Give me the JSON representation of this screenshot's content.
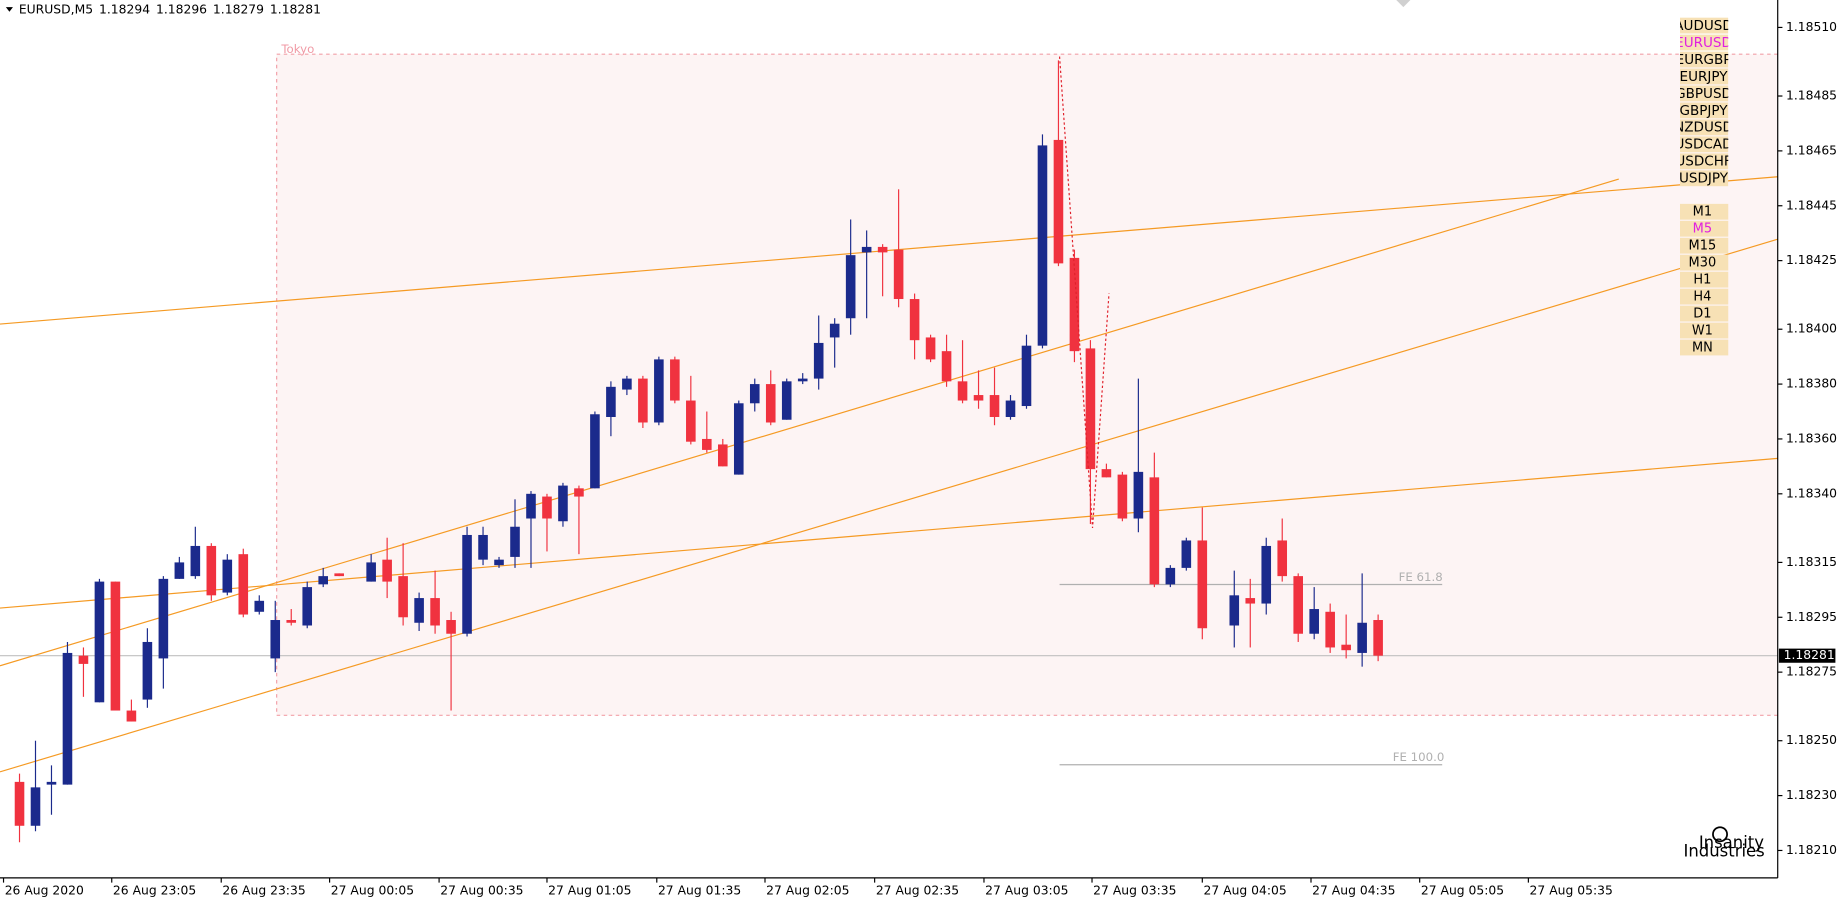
{
  "chart_data": {
    "type": "candlestick",
    "symbol": "EURUSD,M5",
    "up_color": "#1b2a8c",
    "down_color": "#f0323f",
    "x": [
      0,
      1,
      2,
      3,
      4,
      5,
      6,
      7,
      8,
      9,
      10,
      11,
      12,
      13,
      14,
      15,
      16,
      17,
      18,
      19,
      20,
      22,
      23,
      24,
      25,
      26,
      27,
      28,
      29,
      30,
      31,
      32,
      33,
      34,
      35,
      36,
      37,
      38,
      39,
      40,
      41,
      42,
      43,
      44,
      45,
      46,
      47,
      48,
      49,
      50,
      51,
      52,
      53,
      54,
      55,
      56,
      57,
      58,
      59,
      60,
      61,
      62,
      63,
      64,
      65,
      66,
      67,
      68,
      69,
      70,
      71,
      72,
      73,
      74,
      76,
      77,
      78,
      79,
      80,
      81,
      82,
      83,
      84,
      85
    ],
    "open": [
      1.18235,
      1.18219,
      1.18234,
      1.18234,
      1.18281,
      1.18264,
      1.18308,
      1.18261,
      1.18265,
      1.1828,
      1.18309,
      1.1831,
      1.18321,
      1.18304,
      1.18318,
      1.18297,
      1.1828,
      1.18294,
      1.18292,
      1.18307,
      1.18311,
      1.18308,
      1.18316,
      1.1831,
      1.18293,
      1.18302,
      1.18294,
      1.18289,
      1.18316,
      1.18314,
      1.18317,
      1.18331,
      1.18339,
      1.1833,
      1.18342,
      1.18342,
      1.18368,
      1.18378,
      1.18382,
      1.18366,
      1.18389,
      1.18374,
      1.1836,
      1.18358,
      1.18347,
      1.18373,
      1.1838,
      1.18367,
      1.18381,
      1.18382,
      1.18397,
      1.18404,
      1.18428,
      1.1843,
      1.18429,
      1.18411,
      1.18397,
      1.18392,
      1.18381,
      1.18376,
      1.18376,
      1.18368,
      1.18372,
      1.18394,
      1.18469,
      1.18426,
      1.18393,
      1.18349,
      1.18347,
      1.18331,
      1.18346,
      1.18307,
      1.18313,
      1.18323,
      1.18292,
      1.18302,
      1.183,
      1.18323,
      1.1831,
      1.18289,
      1.18297,
      1.18285,
      1.18282,
      1.18294
    ],
    "high": [
      1.18238,
      1.1825,
      1.18241,
      1.18286,
      1.18284,
      1.18309,
      1.18308,
      1.18265,
      1.18291,
      1.1831,
      1.18317,
      1.18328,
      1.18322,
      1.18318,
      1.1832,
      1.18303,
      1.18301,
      1.18298,
      1.18308,
      1.18313,
      1.18311,
      1.18318,
      1.18324,
      1.18322,
      1.18304,
      1.18312,
      1.18297,
      1.18328,
      1.18328,
      1.18317,
      1.18338,
      1.18341,
      1.1834,
      1.18344,
      1.18343,
      1.1837,
      1.18381,
      1.18383,
      1.18383,
      1.1839,
      1.1839,
      1.18383,
      1.1837,
      1.1836,
      1.18374,
      1.18382,
      1.18385,
      1.18382,
      1.18384,
      1.18405,
      1.18404,
      1.1844,
      1.18436,
      1.18431,
      1.18451,
      1.18413,
      1.18398,
      1.18398,
      1.18396,
      1.18385,
      1.18386,
      1.18376,
      1.18398,
      1.18471,
      1.18498,
      1.18429,
      1.18396,
      1.18351,
      1.18348,
      1.18382,
      1.18355,
      1.18314,
      1.18324,
      1.18335,
      1.18312,
      1.18309,
      1.18324,
      1.18331,
      1.18311,
      1.18306,
      1.183,
      1.18296,
      1.18311,
      1.18296
    ],
    "low": [
      1.18213,
      1.18217,
      1.18223,
      1.18234,
      1.18266,
      1.18264,
      1.18261,
      1.18257,
      1.18262,
      1.18269,
      1.18309,
      1.18309,
      1.18301,
      1.18303,
      1.18295,
      1.18296,
      1.18275,
      1.18292,
      1.18291,
      1.18306,
      1.1831,
      1.18308,
      1.18302,
      1.18292,
      1.1829,
      1.18289,
      1.18261,
      1.18288,
      1.18314,
      1.18313,
      1.18313,
      1.18313,
      1.18319,
      1.18328,
      1.18318,
      1.18342,
      1.18361,
      1.18376,
      1.18364,
      1.18365,
      1.18373,
      1.18358,
      1.18355,
      1.1835,
      1.18347,
      1.1837,
      1.18365,
      1.18367,
      1.1838,
      1.18378,
      1.18386,
      1.18398,
      1.18404,
      1.18412,
      1.18408,
      1.18389,
      1.18388,
      1.18379,
      1.18373,
      1.18371,
      1.18365,
      1.18367,
      1.18371,
      1.18393,
      1.18423,
      1.18388,
      1.18329,
      1.18346,
      1.1833,
      1.18326,
      1.18306,
      1.18306,
      1.18312,
      1.18287,
      1.18284,
      1.18284,
      1.18296,
      1.18308,
      1.18286,
      1.18287,
      1.18282,
      1.1828,
      1.18277,
      1.18279
    ],
    "close": [
      1.18219,
      1.18233,
      1.18235,
      1.18282,
      1.18278,
      1.18308,
      1.18261,
      1.18257,
      1.18286,
      1.18309,
      1.18315,
      1.18321,
      1.18303,
      1.18316,
      1.18296,
      1.18301,
      1.18294,
      1.18293,
      1.18306,
      1.1831,
      1.1831,
      1.18315,
      1.18308,
      1.18295,
      1.18302,
      1.18292,
      1.18289,
      1.18325,
      1.18325,
      1.18316,
      1.18328,
      1.1834,
      1.18331,
      1.18343,
      1.18339,
      1.18369,
      1.18379,
      1.18382,
      1.18366,
      1.18389,
      1.18374,
      1.18359,
      1.18356,
      1.1835,
      1.18373,
      1.1838,
      1.18366,
      1.18381,
      1.18382,
      1.18395,
      1.18402,
      1.18427,
      1.1843,
      1.18428,
      1.18411,
      1.18396,
      1.18389,
      1.18381,
      1.18374,
      1.18374,
      1.18368,
      1.18374,
      1.18394,
      1.18467,
      1.18424,
      1.18392,
      1.18349,
      1.18346,
      1.18331,
      1.18348,
      1.18307,
      1.18313,
      1.18323,
      1.18291,
      1.18303,
      1.183,
      1.18321,
      1.1831,
      1.18289,
      1.18298,
      1.18284,
      1.18283,
      1.18293,
      1.18281
    ],
    "xlim": [
      -1,
      110
    ],
    "xticks": [
      {
        "value": -1,
        "label": "26 Aug 2020"
      },
      {
        "value": 5.77,
        "label": "26 Aug 23:05"
      },
      {
        "value": 12.62,
        "label": "26 Aug 23:35"
      },
      {
        "value": 19.4,
        "label": "27 Aug 00:05"
      },
      {
        "value": 26.25,
        "label": "27 Aug 00:35"
      },
      {
        "value": 33,
        "label": "27 Aug 01:05"
      },
      {
        "value": 39.87,
        "label": "27 Aug 01:35"
      },
      {
        "value": 46.64,
        "label": "27 Aug 02:05"
      },
      {
        "value": 53.5,
        "label": "27 Aug 02:35"
      },
      {
        "value": 60.34,
        "label": "27 Aug 03:05"
      },
      {
        "value": 67.1,
        "label": "27 Aug 03:35"
      },
      {
        "value": 74,
        "label": "27 Aug 04:05"
      },
      {
        "value": 80.8,
        "label": "27 Aug 04:35"
      },
      {
        "value": 87.6,
        "label": "27 Aug 05:05"
      },
      {
        "value": 94.4,
        "label": "27 Aug 05:35"
      }
    ],
    "ylim": [
      1.182,
      1.1852
    ],
    "yticks": [
      {
        "value": 1.1851,
        "label": "1.18510"
      },
      {
        "value": 1.18485,
        "label": "1.18485"
      },
      {
        "value": 1.18465,
        "label": "1.18465"
      },
      {
        "value": 1.18445,
        "label": "1.18445"
      },
      {
        "value": 1.18425,
        "label": "1.18425"
      },
      {
        "value": 1.184,
        "label": "1.18400"
      },
      {
        "value": 1.1838,
        "label": "1.18380"
      },
      {
        "value": 1.1836,
        "label": "1.18360"
      },
      {
        "value": 1.1834,
        "label": "1.18340"
      },
      {
        "value": 1.18315,
        "label": "1.18315"
      },
      {
        "value": 1.18295,
        "label": "1.18295"
      },
      {
        "value": 1.18275,
        "label": "1.18275"
      },
      {
        "value": 1.1825,
        "label": "1.18250"
      },
      {
        "value": 1.1823,
        "label": "1.18230"
      },
      {
        "value": 1.1821,
        "label": "1.18210"
      }
    ],
    "annotations": {
      "session": "Tokyo",
      "fe_618": "FE 61.8",
      "fe_100": "FE 100.0"
    }
  },
  "panel": {
    "symbols": [
      "AUDUSD",
      "EURUSD",
      "EURGBP",
      "EURJPY",
      "GBPUSD",
      "GBPJPY",
      "NZDUSD",
      "USDCAD",
      "USDCHF",
      "USDJPY"
    ],
    "active_symbol": "EURUSD",
    "timeframes": [
      "M1",
      "M5",
      "M15",
      "M30",
      "H1",
      "H4",
      "D1",
      "W1",
      "MN"
    ],
    "active_timeframe": "M5",
    "logo": [
      "Insanity",
      "Industries"
    ]
  }
}
